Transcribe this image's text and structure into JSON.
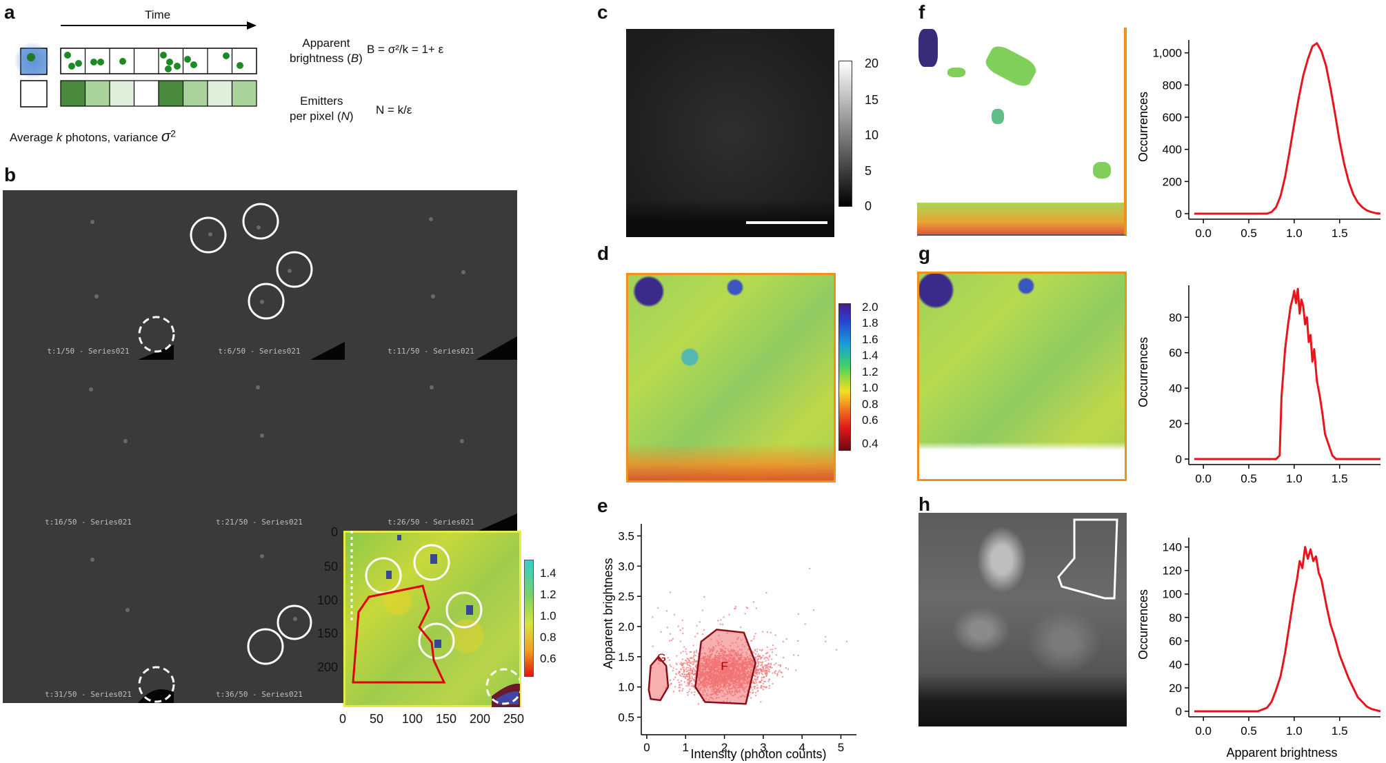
{
  "panels": {
    "a": {
      "label": "a",
      "time_label": "Time",
      "caption_prefix": "Average ",
      "caption_k": "k",
      "caption_mid": " photons, variance ",
      "caption_sigma": "σ",
      "caption_sup": "2",
      "brightness_label_1": "Apparent",
      "brightness_label_2": "brightness (",
      "brightness_label_B": "B",
      "brightness_label_close": ")",
      "brightness_eq": "B = σ²/k = 1+ ε",
      "emitters_label_1": "Emitters",
      "emitters_label_2": "per pixel (",
      "emitters_label_N": "N",
      "emitters_label_close": ")",
      "emitters_eq": "N = k/ε"
    },
    "b": {
      "label": "b",
      "frames": [
        "t:1/50 - Series021",
        "t:6/50 - Series021",
        "t:11/50 - Series021",
        "t:16/50 - Series021",
        "t:21/50 - Series021",
        "t:26/50 - Series021",
        "t:31/50 - Series021",
        "t:36/50 - Series021"
      ],
      "x_ticks": [
        "0",
        "50",
        "100",
        "150",
        "200",
        "250"
      ],
      "y_ticks": [
        "0",
        "50",
        "100",
        "150",
        "200"
      ],
      "colorbar_ticks": [
        "1.4",
        "1.2",
        "1.0",
        "0.8",
        "0.6"
      ]
    },
    "c": {
      "label": "c",
      "colorbar_ticks": [
        "20",
        "15",
        "10",
        "5",
        "0"
      ]
    },
    "d": {
      "label": "d",
      "colorbar_ticks": [
        "2.0",
        "1.8",
        "1.6",
        "1.4",
        "1.2",
        "1.0",
        "0.8",
        "0.6",
        "0.4"
      ]
    },
    "e": {
      "label": "e",
      "xlabel": "Intensity (photon counts)",
      "ylabel": "Apparent brightness",
      "region_g": "G",
      "region_f": "F"
    },
    "f": {
      "label": "f"
    },
    "g": {
      "label": "g"
    },
    "h": {
      "label": "h"
    }
  },
  "chart_data": [
    {
      "type": "scatter",
      "panel": "e",
      "xlabel": "Intensity (photon counts)",
      "ylabel": "Apparent brightness",
      "xlim": [
        0,
        5.4
      ],
      "ylim": [
        0.3,
        3.7
      ],
      "x_ticks": [
        0,
        1,
        2,
        3,
        4,
        5
      ],
      "y_ticks": [
        0.5,
        1.0,
        1.5,
        2.0,
        2.5,
        3.0,
        3.5
      ],
      "point_cloud_center": [
        2.0,
        1.25
      ],
      "regions": [
        {
          "name": "G",
          "polygon": [
            [
              0.05,
              0.95
            ],
            [
              0.1,
              1.35
            ],
            [
              0.3,
              1.5
            ],
            [
              0.5,
              1.35
            ],
            [
              0.55,
              1.0
            ],
            [
              0.35,
              0.78
            ],
            [
              0.1,
              0.8
            ]
          ]
        },
        {
          "name": "F",
          "polygon": [
            [
              1.25,
              1.0
            ],
            [
              1.4,
              1.75
            ],
            [
              1.8,
              1.95
            ],
            [
              2.5,
              1.9
            ],
            [
              2.8,
              1.4
            ],
            [
              2.55,
              0.72
            ],
            [
              1.5,
              0.75
            ]
          ]
        }
      ]
    },
    {
      "type": "line",
      "panel": "f",
      "xlabel": "",
      "ylabel": "Occurrences",
      "xlim": [
        -0.1,
        1.95
      ],
      "ylim": [
        0,
        1080
      ],
      "x_ticks": [
        0.0,
        0.5,
        1.0,
        1.5
      ],
      "y_ticks": [
        0,
        200,
        400,
        600,
        800,
        1000
      ],
      "y_tick_labels": [
        "0",
        "200",
        "400",
        "600",
        "800",
        "1,000"
      ],
      "x": [
        -0.1,
        0.7,
        0.75,
        0.8,
        0.85,
        0.9,
        0.95,
        1.0,
        1.05,
        1.1,
        1.15,
        1.2,
        1.25,
        1.3,
        1.35,
        1.4,
        1.45,
        1.5,
        1.55,
        1.6,
        1.65,
        1.7,
        1.75,
        1.8,
        1.85,
        1.9,
        1.95
      ],
      "y": [
        0,
        0,
        10,
        40,
        110,
        230,
        390,
        560,
        720,
        860,
        960,
        1040,
        1060,
        1010,
        920,
        780,
        620,
        450,
        310,
        200,
        120,
        70,
        40,
        20,
        10,
        3,
        0
      ]
    },
    {
      "type": "line",
      "panel": "g",
      "xlabel": "",
      "ylabel": "Occurrences",
      "xlim": [
        -0.1,
        1.95
      ],
      "ylim": [
        0,
        98
      ],
      "x_ticks": [
        0.0,
        0.5,
        1.0,
        1.5
      ],
      "y_ticks": [
        0,
        20,
        40,
        60,
        80
      ],
      "x": [
        -0.1,
        0.8,
        0.84,
        0.86,
        0.9,
        0.93,
        0.96,
        0.99,
        1.0,
        1.02,
        1.04,
        1.06,
        1.08,
        1.1,
        1.12,
        1.14,
        1.16,
        1.18,
        1.2,
        1.22,
        1.25,
        1.28,
        1.31,
        1.34,
        1.38,
        1.42,
        1.46,
        1.95
      ],
      "y": [
        0,
        0,
        2,
        35,
        62,
        75,
        86,
        92,
        95,
        88,
        96,
        82,
        90,
        86,
        76,
        80,
        66,
        70,
        55,
        62,
        44,
        36,
        26,
        14,
        8,
        2,
        0,
        0
      ]
    },
    {
      "type": "line",
      "panel": "h",
      "xlabel": "Apparent brightness",
      "ylabel": "Occurrences",
      "xlim": [
        -0.1,
        1.95
      ],
      "ylim": [
        0,
        148
      ],
      "x_ticks": [
        0.0,
        0.5,
        1.0,
        1.5
      ],
      "y_ticks": [
        0,
        20,
        40,
        60,
        80,
        100,
        120,
        140
      ],
      "x": [
        -0.1,
        0.6,
        0.7,
        0.75,
        0.8,
        0.85,
        0.9,
        0.95,
        1.0,
        1.03,
        1.06,
        1.09,
        1.12,
        1.15,
        1.18,
        1.21,
        1.24,
        1.27,
        1.3,
        1.33,
        1.36,
        1.4,
        1.45,
        1.5,
        1.55,
        1.6,
        1.65,
        1.7,
        1.75,
        1.8,
        1.85,
        1.9,
        1.95
      ],
      "y": [
        0,
        0,
        3,
        8,
        18,
        30,
        50,
        75,
        100,
        112,
        128,
        122,
        140,
        130,
        138,
        128,
        132,
        118,
        112,
        100,
        88,
        74,
        62,
        48,
        38,
        28,
        20,
        12,
        8,
        4,
        2,
        1,
        0
      ]
    }
  ]
}
